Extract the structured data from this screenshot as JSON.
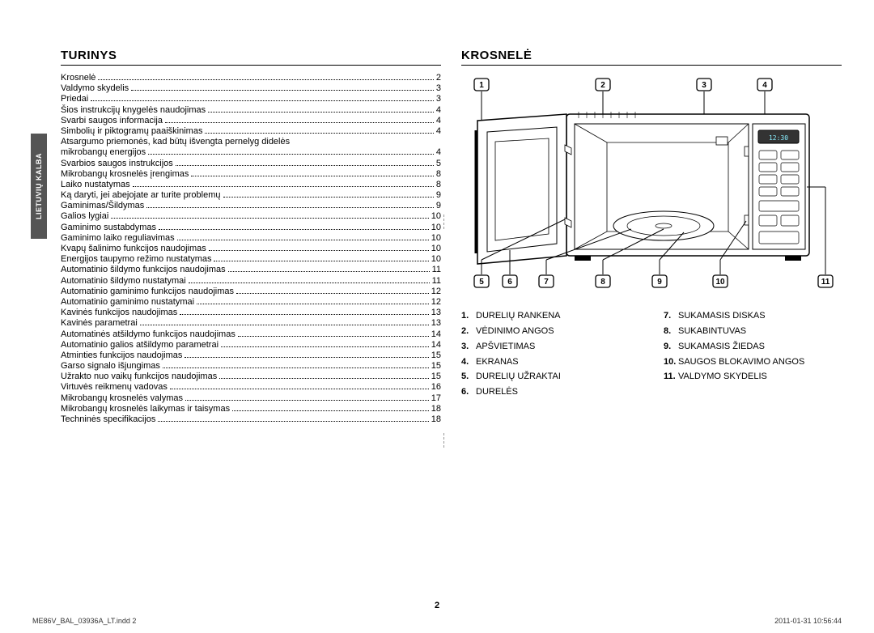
{
  "sidebar_label": "LIETUVIŲ KALBA",
  "left": {
    "title": "TURINYS",
    "toc": [
      {
        "label": "Krosnelė",
        "page": "2"
      },
      {
        "label": "Valdymo skydelis",
        "page": "3"
      },
      {
        "label": "Priedai",
        "page": "3"
      },
      {
        "label": "Šios instrukcijų knygelės naudojimas",
        "page": "4"
      },
      {
        "label": "Svarbi saugos informacija",
        "page": "4"
      },
      {
        "label": "Simbolių ir piktogramų paaiškinimas",
        "page": "4"
      },
      {
        "label": "Atsargumo priemonės, kad būtų išvengta pernelyg didelės mikrobangų energijos",
        "page": "4",
        "wrap": true
      },
      {
        "label": "Svarbios saugos instrukcijos",
        "page": "5"
      },
      {
        "label": "Mikrobangų krosnelės įrengimas",
        "page": "8"
      },
      {
        "label": "Laiko nustatymas",
        "page": "8"
      },
      {
        "label": "Ką daryti, jei abejojate ar turite problemų",
        "page": "9"
      },
      {
        "label": "Gaminimas/Šildymas",
        "page": "9"
      },
      {
        "label": "Galios lygiai",
        "page": "10"
      },
      {
        "label": "Gaminimo sustabdymas",
        "page": "10"
      },
      {
        "label": "Gaminimo laiko reguliavimas",
        "page": "10"
      },
      {
        "label": "Kvapų šalinimo funkcijos naudojimas",
        "page": "10"
      },
      {
        "label": "Energijos taupymo režimo nustatymas",
        "page": "10"
      },
      {
        "label": "Automatinio šildymo funkcijos naudojimas",
        "page": "11"
      },
      {
        "label": "Automatinio šildymo nustatymai",
        "page": "11"
      },
      {
        "label": "Automatinio gaminimo funkcijos naudojimas",
        "page": "12"
      },
      {
        "label": "Automatinio gaminimo nustatymai",
        "page": "12"
      },
      {
        "label": "Kavinės funkcijos naudojimas",
        "page": "13"
      },
      {
        "label": "Kavinės parametrai",
        "page": "13"
      },
      {
        "label": "Automatinės atšildymo funkcijos naudojimas",
        "page": "14"
      },
      {
        "label": "Automatinio galios atšildymo parametrai",
        "page": "14"
      },
      {
        "label": "Atminties funkcijos naudojimas",
        "page": "15"
      },
      {
        "label": "Garso signalo išjungimas",
        "page": "15"
      },
      {
        "label": "Užrakto nuo vaikų funkcijos naudojimas",
        "page": "15"
      },
      {
        "label": "Virtuvės reikmenų vadovas",
        "page": "16"
      },
      {
        "label": "Mikrobangų krosnelės valymas",
        "page": "17"
      },
      {
        "label": "Mikrobangų krosnelės laikymas ir taisymas",
        "page": "18"
      },
      {
        "label": "Techninės specifikacijos",
        "page": "18"
      }
    ]
  },
  "right": {
    "title": "KROSNELĖ",
    "diagram": {
      "callouts_top": [
        "1",
        "2",
        "3",
        "4"
      ],
      "callouts_bottom": [
        "5",
        "6",
        "7",
        "8",
        "9",
        "10",
        "11"
      ],
      "display_text": "12:30",
      "colors": {
        "stroke": "#000000",
        "fill": "#ffffff",
        "panel": "#f0f0f0"
      }
    },
    "legend_left": [
      {
        "n": "1.",
        "t": "DURELIŲ RANKENA"
      },
      {
        "n": "2.",
        "t": "VĖDINIMO ANGOS"
      },
      {
        "n": "3.",
        "t": "APŠVIETIMAS"
      },
      {
        "n": "4.",
        "t": "EKRANAS"
      },
      {
        "n": "5.",
        "t": "DURELIŲ UŽRAKTAI"
      },
      {
        "n": "6.",
        "t": "DURELĖS"
      }
    ],
    "legend_right": [
      {
        "n": "7.",
        "t": "SUKAMASIS DISKAS"
      },
      {
        "n": "8.",
        "t": "SUKABINTUVAS"
      },
      {
        "n": "9.",
        "t": "SUKAMASIS ŽIEDAS"
      },
      {
        "n": "10.",
        "t": "SAUGOS BLOKAVIMO ANGOS"
      },
      {
        "n": "11.",
        "t": "VALDYMO SKYDELIS"
      }
    ]
  },
  "page_number": "2",
  "footer": {
    "left": "ME86V_BAL_03936A_LT.indd   2",
    "right": "2011-01-31     10:56:44"
  }
}
